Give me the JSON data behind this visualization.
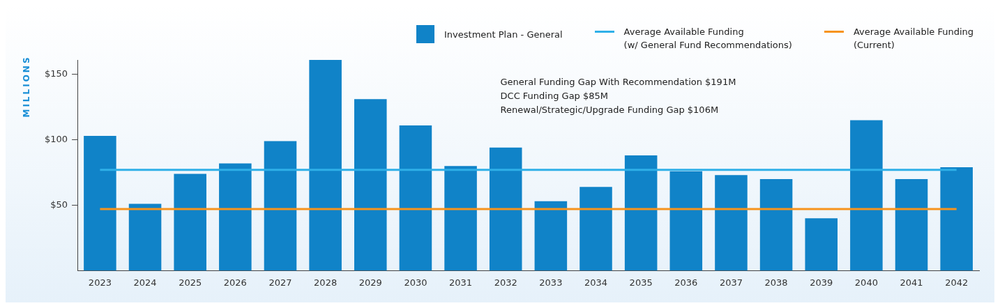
{
  "chart_data": {
    "type": "bar",
    "ylabel": "MILLIONS",
    "categories": [
      "2023",
      "2024",
      "2025",
      "2026",
      "2027",
      "2028",
      "2029",
      "2030",
      "2031",
      "2032",
      "2033",
      "2034",
      "2035",
      "2036",
      "2037",
      "2038",
      "2039",
      "2040",
      "2041",
      "2042"
    ],
    "series": [
      {
        "name": "Investment Plan - General",
        "color": "#1083c8",
        "values": [
          103,
          51,
          74,
          82,
          99,
          161,
          131,
          111,
          80,
          94,
          53,
          64,
          88,
          76,
          73,
          70,
          40,
          115,
          70,
          79
        ]
      },
      {
        "name": "Average Available Funding\n(w/ General Fund Recommendations)",
        "type": "line",
        "color": "#2fb0e8",
        "values": [
          77,
          77,
          77,
          77,
          77,
          77,
          77,
          77,
          77,
          77,
          77,
          77,
          77,
          77,
          77,
          77,
          77,
          77,
          77,
          77
        ]
      },
      {
        "name": "Average Available Funding\n(Current)",
        "type": "line",
        "color": "#f7941d",
        "values": [
          47,
          47,
          47,
          47,
          47,
          47,
          47,
          47,
          47,
          47,
          47,
          47,
          47,
          47,
          47,
          47,
          47,
          47,
          47,
          47
        ]
      }
    ],
    "ylim": [
      0,
      161
    ],
    "yticks": [
      {
        "value": 50,
        "label": "$50"
      },
      {
        "value": 100,
        "label": "$100"
      },
      {
        "value": 150,
        "label": "$150"
      }
    ],
    "grid": false,
    "legend": "top right",
    "marker": "none",
    "annotations": [
      "General Funding Gap With Recommendation $191M",
      "DCC Funding Gap $85M",
      "Renewal/Strategic/Upgrade Funding Gap $106M"
    ]
  }
}
